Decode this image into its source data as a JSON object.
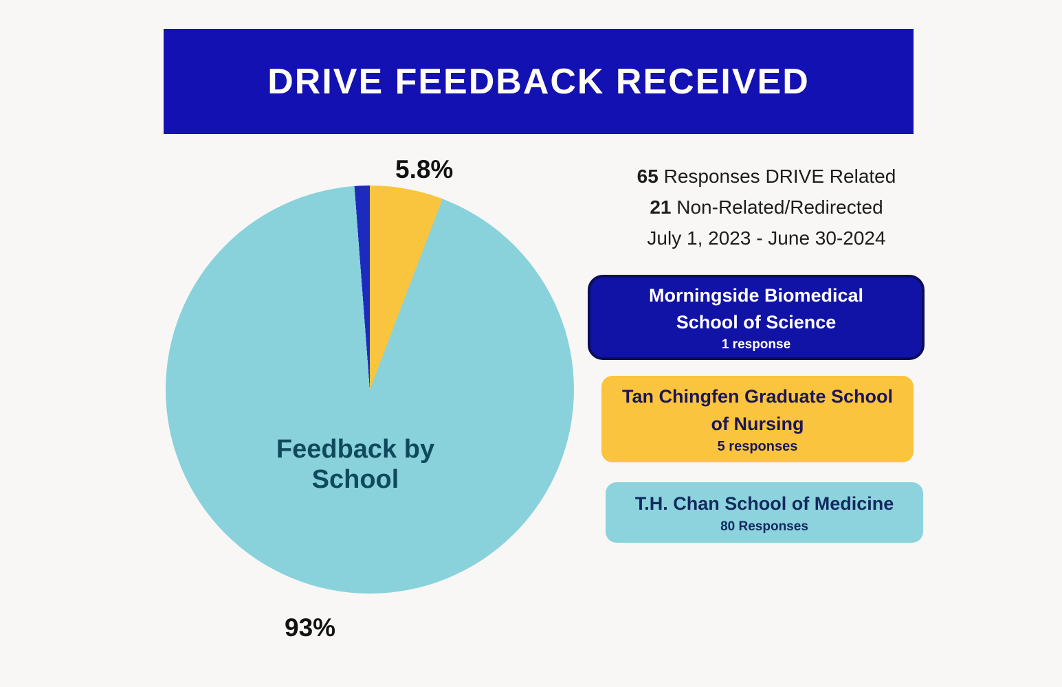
{
  "header": {
    "title": "DRIVE FEEDBACK RECEIVED",
    "bg_color": "#1411b3"
  },
  "summary": {
    "line1": {
      "strong": "65",
      "rest": " Responses DRIVE Related"
    },
    "line2": {
      "strong": "21",
      "rest": " Non-Related/Redirected"
    },
    "line3": {
      "rest": "July 1, 2023 - June 30-2024"
    }
  },
  "chart_data": {
    "type": "pie",
    "title": "Feedback by School",
    "start_angle_deg": 0,
    "legend_position": "right",
    "slices": [
      {
        "label": "Tan Chingfen Graduate School of Nursing",
        "value": 5,
        "percent": 5.8,
        "display_percent": "5.8%",
        "color": "#f9c53e"
      },
      {
        "label": "T.H. Chan School of Medicine",
        "value": 80,
        "percent": 93,
        "display_percent": "93%",
        "color": "#89d2dc"
      },
      {
        "label": "Morningside Biomedical School of Science",
        "value": 1,
        "percent": 1.2,
        "color": "#1c2bbd"
      }
    ]
  },
  "legend": {
    "items": [
      {
        "title": "Morningside Biomedical School of Science",
        "count": "1 response",
        "bg": "#1113a6",
        "border": "#0a0d5a",
        "text": "#ffffff"
      },
      {
        "title": "Tan Chingfen Graduate School of Nursing",
        "count": "5 responses",
        "bg": "#fbc43e",
        "border": "#fbc43e",
        "text": "#1c1557"
      },
      {
        "title": "T.H. Chan School of Medicine",
        "count": "80 Responses",
        "bg": "#8cd3dd",
        "border": "#8cd3dd",
        "text": "#122a5e"
      }
    ]
  },
  "colors": {
    "background": "#f8f7f5",
    "banner_blue": "#1411b3",
    "pie_teal": "#89d2dc",
    "pie_yellow": "#f9c53e",
    "pie_blue": "#1c2bbd",
    "center_label_text": "#0f4a5c",
    "body_text": "#1d1d1d"
  }
}
